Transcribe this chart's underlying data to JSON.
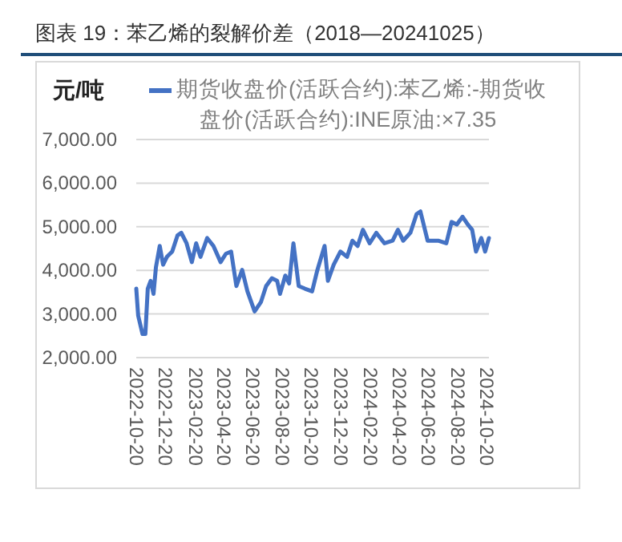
{
  "chart_data": {
    "type": "line",
    "title": "图表 19：苯乙烯的裂解价差（2018—20241025）",
    "ylabel": "元/吨",
    "x": [
      "2022-10-20",
      "2022-10-24",
      "2022-11-02",
      "2022-11-08",
      "2022-11-13",
      "2022-11-19",
      "2022-11-25",
      "2022-11-30",
      "2022-12-08",
      "2022-12-15",
      "2022-12-23",
      "2023-01-03",
      "2023-01-14",
      "2023-01-22",
      "2023-02-02",
      "2023-02-13",
      "2023-02-22",
      "2023-03-03",
      "2023-03-17",
      "2023-03-30",
      "2023-04-14",
      "2023-04-25",
      "2023-05-06",
      "2023-05-17",
      "2023-05-29",
      "2023-06-09",
      "2023-06-24",
      "2023-07-07",
      "2023-07-18",
      "2023-07-30",
      "2023-08-10",
      "2023-08-16",
      "2023-08-27",
      "2023-09-04",
      "2023-09-13",
      "2023-09-24",
      "2023-10-07",
      "2023-10-22",
      "2023-11-02",
      "2023-11-17",
      "2023-11-24",
      "2023-12-06",
      "2023-12-20",
      "2024-01-03",
      "2024-01-14",
      "2024-01-25",
      "2024-02-05",
      "2024-02-19",
      "2024-03-04",
      "2024-03-21",
      "2024-04-07",
      "2024-04-18",
      "2024-04-29",
      "2024-05-14",
      "2024-05-27",
      "2024-06-04",
      "2024-06-19",
      "2024-07-11",
      "2024-07-28",
      "2024-08-08",
      "2024-08-19",
      "2024-08-31",
      "2024-09-11",
      "2024-09-20",
      "2024-09-28",
      "2024-10-09",
      "2024-10-17",
      "2024-10-25"
    ],
    "series": [
      {
        "name": "期货收盘价(活跃合约):苯乙烯:-期货收盘价(活跃合约):INE原油:×7.35",
        "color": "#4472c4",
        "values": [
          3580,
          2960,
          2540,
          2540,
          3580,
          3760,
          3460,
          4070,
          4560,
          4130,
          4310,
          4430,
          4800,
          4860,
          4620,
          4190,
          4620,
          4310,
          4740,
          4560,
          4190,
          4380,
          4430,
          3640,
          4010,
          3520,
          3060,
          3270,
          3640,
          3820,
          3760,
          3460,
          3880,
          3700,
          4620,
          3640,
          3580,
          3520,
          4010,
          4560,
          3760,
          4130,
          4430,
          4310,
          4680,
          4560,
          4930,
          4620,
          4860,
          4620,
          4680,
          4930,
          4680,
          4860,
          5290,
          5350,
          4680,
          4680,
          4620,
          5110,
          5050,
          5230,
          5050,
          4930,
          4430,
          4740,
          4430,
          4740
        ]
      }
    ],
    "xlim": [
      "2022-10-20",
      "2024-10-25"
    ],
    "xticks": [
      "2022-10-20",
      "2022-12-20",
      "2023-02-20",
      "2023-04-20",
      "2023-06-20",
      "2023-08-20",
      "2023-10-20",
      "2023-12-20",
      "2024-02-20",
      "2024-04-20",
      "2024-06-20",
      "2024-08-20",
      "2024-10-20"
    ],
    "ylim": [
      2000,
      7000
    ],
    "yticks": [
      {
        "value": 2000,
        "label": "2,000.00"
      },
      {
        "value": 3000,
        "label": "3,000.00"
      },
      {
        "value": 4000,
        "label": "4,000.00"
      },
      {
        "value": 5000,
        "label": "5,000.00"
      },
      {
        "value": 6000,
        "label": "6,000.00"
      },
      {
        "value": 7000,
        "label": "7,000.00"
      }
    ],
    "grid": "y",
    "legend": "top",
    "line_style": "solid",
    "marker": "none"
  }
}
